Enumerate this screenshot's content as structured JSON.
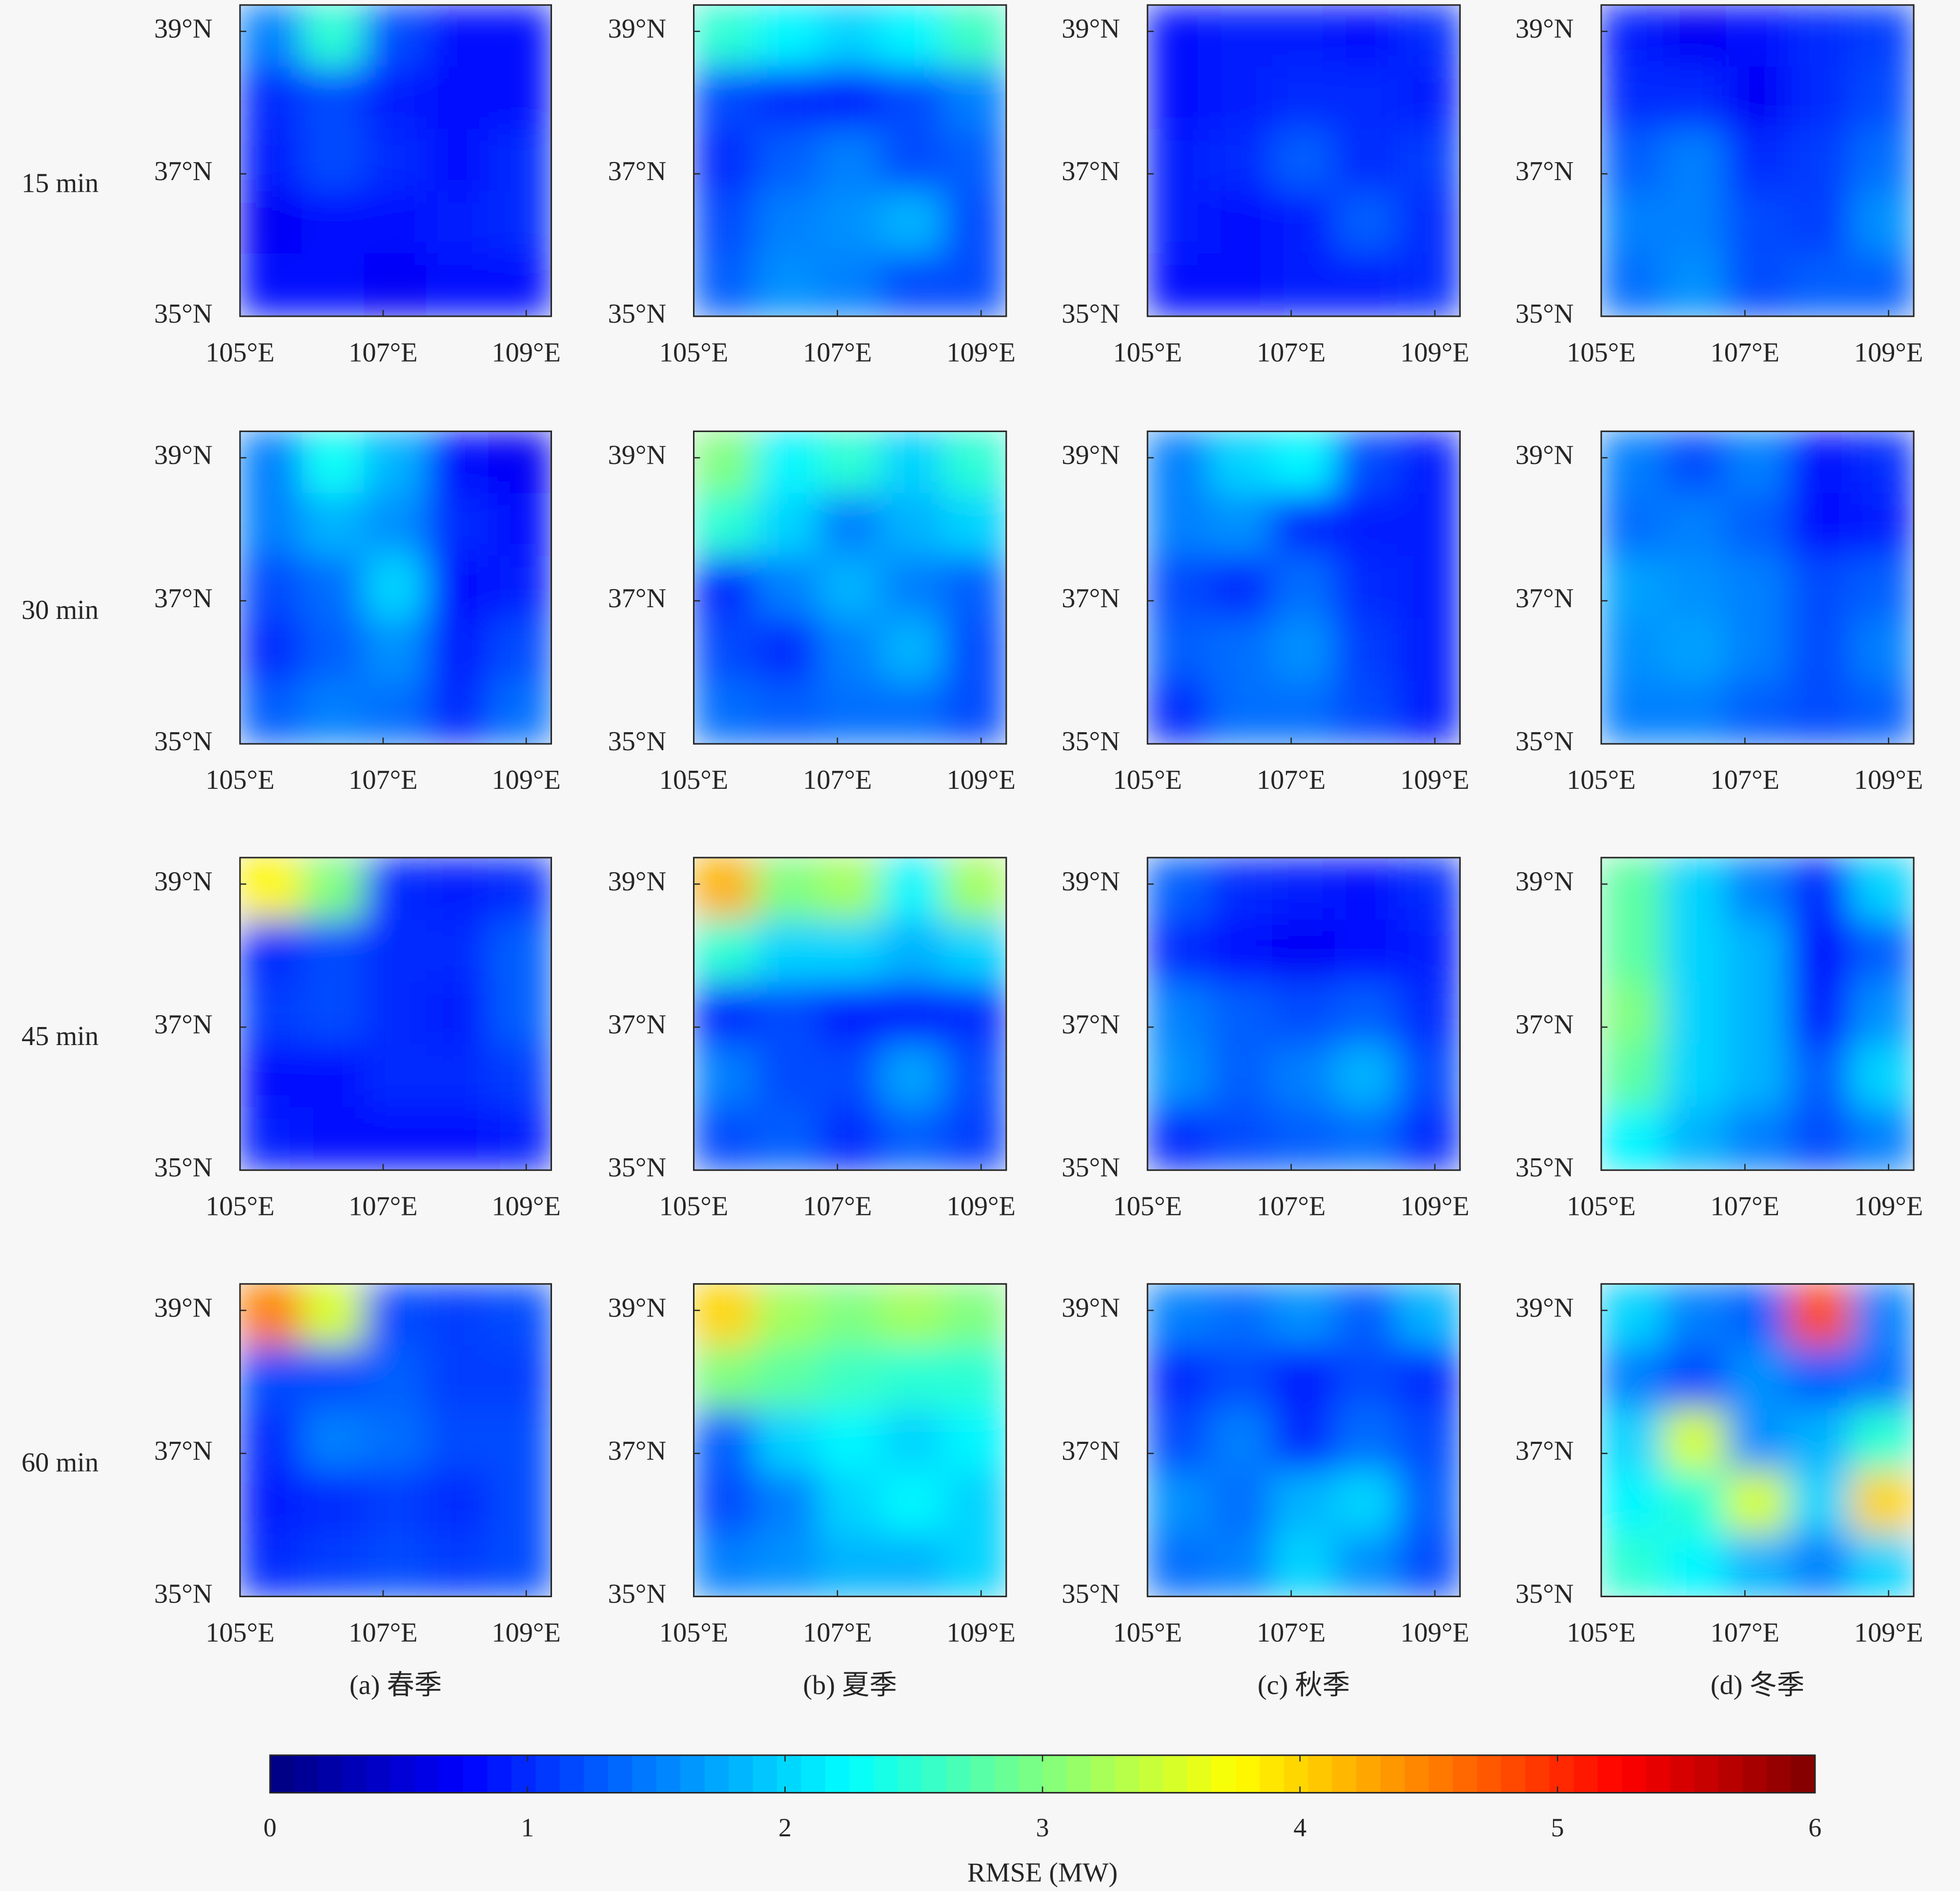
{
  "row_labels": [
    "15 min",
    "30 min",
    "45 min",
    "60 min"
  ],
  "column_labels": [
    "(a) 春季",
    "(b) 夏季",
    "(c) 秋季",
    "(d) 冬季"
  ],
  "colorbar": {
    "label": "RMSE (MW)",
    "lim": [
      0,
      6
    ],
    "ticks": [
      0,
      1,
      2,
      3,
      4,
      5,
      6
    ],
    "colormap": "jet"
  },
  "chart_data": [
    {
      "type": "heatmap",
      "xlim": [
        105,
        109.35
      ],
      "ylim": [
        35,
        39.37
      ],
      "xticks": [
        {
          "value": 105,
          "label": "105°E"
        },
        {
          "value": 107,
          "label": "107°E"
        },
        {
          "value": 109,
          "label": "109°E"
        }
      ],
      "yticks": [
        {
          "value": 35,
          "label": "35°N"
        },
        {
          "value": 37,
          "label": "37°N"
        },
        {
          "value": 39,
          "label": "39°N"
        }
      ],
      "z": [
        [
          1.5,
          2.5,
          1.2,
          0.8,
          0.8
        ],
        [
          1.0,
          1.2,
          0.9,
          0.8,
          0.8
        ],
        [
          0.9,
          1.2,
          1.0,
          0.8,
          1.0
        ],
        [
          0.7,
          0.8,
          0.8,
          0.9,
          1.0
        ],
        [
          0.8,
          0.8,
          0.7,
          0.8,
          0.8
        ]
      ]
    },
    {
      "type": "heatmap",
      "xlim": [
        105,
        109.35
      ],
      "ylim": [
        35,
        39.37
      ],
      "xticks": [
        {
          "value": 105,
          "label": "105°E"
        },
        {
          "value": 107,
          "label": "107°E"
        },
        {
          "value": 109,
          "label": "109°E"
        }
      ],
      "yticks": [
        {
          "value": 35,
          "label": "35°N"
        },
        {
          "value": 37,
          "label": "37°N"
        },
        {
          "value": 39,
          "label": "39°N"
        }
      ],
      "z": [
        [
          2.5,
          2.2,
          2.0,
          2.2,
          2.6
        ],
        [
          1.2,
          1.0,
          0.9,
          1.2,
          1.5
        ],
        [
          1.0,
          1.3,
          1.5,
          1.2,
          1.3
        ],
        [
          1.2,
          1.5,
          1.6,
          1.8,
          1.2
        ],
        [
          1.3,
          1.6,
          1.5,
          1.2,
          1.2
        ]
      ]
    },
    {
      "type": "heatmap",
      "xlim": [
        105,
        109.35
      ],
      "ylim": [
        35,
        39.37
      ],
      "xticks": [
        {
          "value": 105,
          "label": "105°E"
        },
        {
          "value": 107,
          "label": "107°E"
        },
        {
          "value": 109,
          "label": "109°E"
        }
      ],
      "yticks": [
        {
          "value": 35,
          "label": "35°N"
        },
        {
          "value": 37,
          "label": "37°N"
        },
        {
          "value": 39,
          "label": "39°N"
        }
      ],
      "z": [
        [
          0.8,
          0.9,
          0.9,
          0.8,
          1.0
        ],
        [
          0.8,
          0.9,
          1.0,
          1.0,
          0.9
        ],
        [
          0.9,
          1.0,
          1.3,
          1.0,
          1.1
        ],
        [
          0.9,
          0.8,
          0.9,
          1.3,
          1.0
        ],
        [
          0.8,
          0.8,
          0.9,
          0.9,
          1.0
        ]
      ]
    },
    {
      "type": "heatmap",
      "xlim": [
        105,
        109.35
      ],
      "ylim": [
        35,
        39.37
      ],
      "xticks": [
        {
          "value": 105,
          "label": "105°E"
        },
        {
          "value": 107,
          "label": "107°E"
        },
        {
          "value": 109,
          "label": "109°E"
        }
      ],
      "yticks": [
        {
          "value": 35,
          "label": "35°N"
        },
        {
          "value": 37,
          "label": "37°N"
        },
        {
          "value": 39,
          "label": "39°N"
        }
      ],
      "z": [
        [
          0.9,
          0.7,
          0.8,
          1.0,
          1.1
        ],
        [
          1.0,
          1.0,
          0.7,
          1.0,
          1.2
        ],
        [
          1.3,
          1.5,
          1.0,
          1.1,
          1.4
        ],
        [
          1.5,
          1.5,
          1.2,
          1.1,
          1.6
        ],
        [
          1.4,
          1.6,
          1.2,
          1.3,
          1.3
        ]
      ]
    },
    {
      "type": "heatmap",
      "xlim": [
        105,
        109.35
      ],
      "ylim": [
        35,
        39.37
      ],
      "xticks": [
        {
          "value": 105,
          "label": "105°E"
        },
        {
          "value": 107,
          "label": "107°E"
        },
        {
          "value": 109,
          "label": "109°E"
        }
      ],
      "yticks": [
        {
          "value": 35,
          "label": "35°N"
        },
        {
          "value": 37,
          "label": "37°N"
        },
        {
          "value": 39,
          "label": "39°N"
        }
      ],
      "z": [
        [
          1.5,
          2.3,
          1.8,
          0.8,
          0.7
        ],
        [
          1.5,
          1.8,
          1.6,
          1.0,
          0.8
        ],
        [
          1.2,
          1.4,
          2.0,
          0.8,
          0.9
        ],
        [
          1.0,
          1.3,
          1.6,
          0.9,
          1.2
        ],
        [
          1.3,
          1.5,
          1.4,
          1.0,
          1.4
        ]
      ]
    },
    {
      "type": "heatmap",
      "xlim": [
        105,
        109.35
      ],
      "ylim": [
        35,
        39.37
      ],
      "xticks": [
        {
          "value": 105,
          "label": "105°E"
        },
        {
          "value": 107,
          "label": "107°E"
        },
        {
          "value": 109,
          "label": "109°E"
        }
      ],
      "yticks": [
        {
          "value": 35,
          "label": "35°N"
        },
        {
          "value": 37,
          "label": "37°N"
        },
        {
          "value": 39,
          "label": "39°N"
        }
      ],
      "z": [
        [
          3.0,
          2.2,
          2.5,
          2.0,
          2.5
        ],
        [
          2.5,
          2.0,
          1.5,
          1.8,
          2.0
        ],
        [
          1.0,
          1.5,
          1.8,
          1.5,
          1.3
        ],
        [
          1.2,
          1.0,
          1.5,
          1.8,
          1.2
        ],
        [
          1.4,
          1.3,
          1.4,
          1.4,
          1.2
        ]
      ]
    },
    {
      "type": "heatmap",
      "xlim": [
        105,
        109.35
      ],
      "ylim": [
        35,
        39.37
      ],
      "xticks": [
        {
          "value": 105,
          "label": "105°E"
        },
        {
          "value": 107,
          "label": "107°E"
        },
        {
          "value": 109,
          "label": "109°E"
        }
      ],
      "yticks": [
        {
          "value": 35,
          "label": "35°N"
        },
        {
          "value": 37,
          "label": "37°N"
        },
        {
          "value": 39,
          "label": "39°N"
        }
      ],
      "z": [
        [
          1.5,
          2.0,
          2.2,
          1.2,
          0.9
        ],
        [
          1.5,
          1.6,
          1.0,
          0.9,
          0.9
        ],
        [
          1.2,
          1.0,
          1.4,
          1.0,
          0.9
        ],
        [
          1.3,
          1.4,
          1.6,
          1.1,
          0.9
        ],
        [
          1.0,
          1.4,
          1.4,
          1.2,
          0.9
        ]
      ]
    },
    {
      "type": "heatmap",
      "xlim": [
        105,
        109.35
      ],
      "ylim": [
        35,
        39.37
      ],
      "xticks": [
        {
          "value": 105,
          "label": "105°E"
        },
        {
          "value": 107,
          "label": "107°E"
        },
        {
          "value": 109,
          "label": "109°E"
        }
      ],
      "yticks": [
        {
          "value": 35,
          "label": "35°N"
        },
        {
          "value": 37,
          "label": "37°N"
        },
        {
          "value": 39,
          "label": "39°N"
        }
      ],
      "z": [
        [
          1.5,
          1.2,
          1.5,
          0.8,
          1.0
        ],
        [
          1.4,
          1.5,
          1.3,
          0.8,
          0.9
        ],
        [
          1.7,
          1.6,
          1.5,
          1.2,
          1.3
        ],
        [
          1.6,
          1.7,
          1.5,
          1.2,
          1.5
        ],
        [
          1.5,
          1.5,
          1.3,
          1.2,
          1.3
        ]
      ]
    },
    {
      "type": "heatmap",
      "xlim": [
        105,
        109.35
      ],
      "ylim": [
        35,
        39.37
      ],
      "xticks": [
        {
          "value": 105,
          "label": "105°E"
        },
        {
          "value": 107,
          "label": "107°E"
        },
        {
          "value": 109,
          "label": "109°E"
        }
      ],
      "yticks": [
        {
          "value": 35,
          "label": "35°N"
        },
        {
          "value": 37,
          "label": "37°N"
        },
        {
          "value": 39,
          "label": "39°N"
        }
      ],
      "z": [
        [
          3.8,
          3.0,
          1.0,
          0.9,
          1.0
        ],
        [
          1.0,
          1.2,
          1.0,
          1.0,
          1.3
        ],
        [
          1.1,
          1.2,
          1.0,
          0.9,
          1.3
        ],
        [
          0.8,
          0.8,
          1.0,
          1.0,
          1.1
        ],
        [
          0.9,
          0.8,
          0.8,
          0.8,
          0.9
        ]
      ]
    },
    {
      "type": "heatmap",
      "xlim": [
        105,
        109.35
      ],
      "ylim": [
        35,
        39.37
      ],
      "xticks": [
        {
          "value": 105,
          "label": "105°E"
        },
        {
          "value": 107,
          "label": "107°E"
        },
        {
          "value": 109,
          "label": "109°E"
        }
      ],
      "yticks": [
        {
          "value": 35,
          "label": "35°N"
        },
        {
          "value": 37,
          "label": "37°N"
        },
        {
          "value": 39,
          "label": "39°N"
        }
      ],
      "z": [
        [
          4.2,
          3.0,
          3.2,
          2.2,
          3.2
        ],
        [
          2.5,
          2.0,
          2.0,
          1.8,
          2.0
        ],
        [
          1.0,
          1.2,
          0.9,
          0.9,
          1.0
        ],
        [
          1.5,
          1.2,
          1.2,
          1.7,
          1.2
        ],
        [
          1.2,
          1.3,
          1.0,
          1.3,
          1.1
        ]
      ]
    },
    {
      "type": "heatmap",
      "xlim": [
        105,
        109.35
      ],
      "ylim": [
        35,
        39.37
      ],
      "xticks": [
        {
          "value": 105,
          "label": "105°E"
        },
        {
          "value": 107,
          "label": "107°E"
        },
        {
          "value": 109,
          "label": "109°E"
        }
      ],
      "yticks": [
        {
          "value": 35,
          "label": "35°N"
        },
        {
          "value": 37,
          "label": "37°N"
        },
        {
          "value": 39,
          "label": "39°N"
        }
      ],
      "z": [
        [
          1.3,
          1.0,
          0.9,
          0.8,
          1.0
        ],
        [
          1.0,
          0.8,
          0.7,
          0.8,
          0.9
        ],
        [
          1.5,
          1.3,
          1.2,
          1.3,
          1.0
        ],
        [
          1.6,
          1.3,
          1.5,
          1.8,
          1.2
        ],
        [
          1.0,
          1.2,
          1.3,
          1.4,
          1.0
        ]
      ]
    },
    {
      "type": "heatmap",
      "xlim": [
        105,
        109.35
      ],
      "ylim": [
        35,
        39.37
      ],
      "xticks": [
        {
          "value": 105,
          "label": "105°E"
        },
        {
          "value": 107,
          "label": "107°E"
        },
        {
          "value": 109,
          "label": "109°E"
        }
      ],
      "yticks": [
        {
          "value": 35,
          "label": "35°N"
        },
        {
          "value": 37,
          "label": "37°N"
        },
        {
          "value": 39,
          "label": "39°N"
        }
      ],
      "z": [
        [
          2.8,
          2.0,
          1.5,
          1.0,
          2.0
        ],
        [
          2.8,
          2.0,
          1.8,
          0.8,
          1.3
        ],
        [
          3.0,
          2.0,
          1.8,
          0.9,
          1.6
        ],
        [
          2.8,
          2.0,
          1.8,
          1.3,
          2.0
        ],
        [
          2.2,
          1.8,
          1.5,
          1.2,
          1.5
        ]
      ]
    },
    {
      "type": "heatmap",
      "xlim": [
        105,
        109.35
      ],
      "ylim": [
        35,
        39.37
      ],
      "xticks": [
        {
          "value": 105,
          "label": "105°E"
        },
        {
          "value": 107,
          "label": "107°E"
        },
        {
          "value": 109,
          "label": "109°E"
        }
      ],
      "yticks": [
        {
          "value": 35,
          "label": "35°N"
        },
        {
          "value": 37,
          "label": "37°N"
        },
        {
          "value": 39,
          "label": "39°N"
        }
      ],
      "z": [
        [
          4.5,
          3.5,
          1.2,
          1.1,
          1.2
        ],
        [
          1.2,
          1.2,
          1.3,
          1.1,
          1.1
        ],
        [
          1.0,
          1.5,
          1.4,
          1.2,
          1.2
        ],
        [
          0.9,
          1.0,
          1.1,
          1.0,
          1.2
        ],
        [
          1.0,
          1.1,
          1.2,
          1.1,
          1.2
        ]
      ]
    },
    {
      "type": "heatmap",
      "xlim": [
        105,
        109.35
      ],
      "ylim": [
        35,
        39.37
      ],
      "xticks": [
        {
          "value": 105,
          "label": "105°E"
        },
        {
          "value": 107,
          "label": "107°E"
        },
        {
          "value": 109,
          "label": "109°E"
        }
      ],
      "yticks": [
        {
          "value": 35,
          "label": "35°N"
        },
        {
          "value": 37,
          "label": "37°N"
        },
        {
          "value": 39,
          "label": "39°N"
        }
      ],
      "z": [
        [
          4.0,
          3.2,
          3.0,
          3.2,
          3.0
        ],
        [
          3.0,
          2.8,
          2.6,
          2.5,
          2.5
        ],
        [
          1.3,
          2.0,
          2.2,
          2.0,
          2.2
        ],
        [
          1.2,
          1.5,
          2.0,
          2.2,
          2.0
        ],
        [
          1.5,
          1.6,
          1.8,
          1.8,
          2.0
        ]
      ]
    },
    {
      "type": "heatmap",
      "xlim": [
        105,
        109.35
      ],
      "ylim": [
        35,
        39.37
      ],
      "xticks": [
        {
          "value": 105,
          "label": "105°E"
        },
        {
          "value": 107,
          "label": "107°E"
        },
        {
          "value": 109,
          "label": "109°E"
        }
      ],
      "yticks": [
        {
          "value": 35,
          "label": "35°N"
        },
        {
          "value": 37,
          "label": "37°N"
        },
        {
          "value": 39,
          "label": "39°N"
        }
      ],
      "z": [
        [
          1.5,
          1.4,
          1.6,
          1.3,
          1.8
        ],
        [
          1.0,
          1.2,
          0.9,
          1.2,
          1.0
        ],
        [
          1.2,
          1.5,
          1.0,
          1.4,
          1.2
        ],
        [
          1.6,
          1.4,
          1.8,
          2.0,
          1.3
        ],
        [
          1.4,
          1.5,
          2.0,
          1.6,
          1.2
        ]
      ]
    },
    {
      "type": "heatmap",
      "xlim": [
        105,
        109.35
      ],
      "ylim": [
        35,
        39.37
      ],
      "xticks": [
        {
          "value": 105,
          "label": "105°E"
        },
        {
          "value": 107,
          "label": "107°E"
        },
        {
          "value": 109,
          "label": "109°E"
        }
      ],
      "yticks": [
        {
          "value": 35,
          "label": "35°N"
        },
        {
          "value": 37,
          "label": "37°N"
        },
        {
          "value": 39,
          "label": "39°N"
        }
      ],
      "z": [
        [
          2.0,
          1.5,
          1.3,
          4.8,
          1.5
        ],
        [
          1.5,
          1.2,
          1.6,
          1.3,
          1.4
        ],
        [
          2.0,
          3.5,
          1.6,
          1.8,
          2.5
        ],
        [
          2.2,
          2.5,
          3.5,
          2.0,
          4.0
        ],
        [
          2.5,
          2.2,
          1.8,
          1.5,
          2.0
        ]
      ]
    }
  ]
}
